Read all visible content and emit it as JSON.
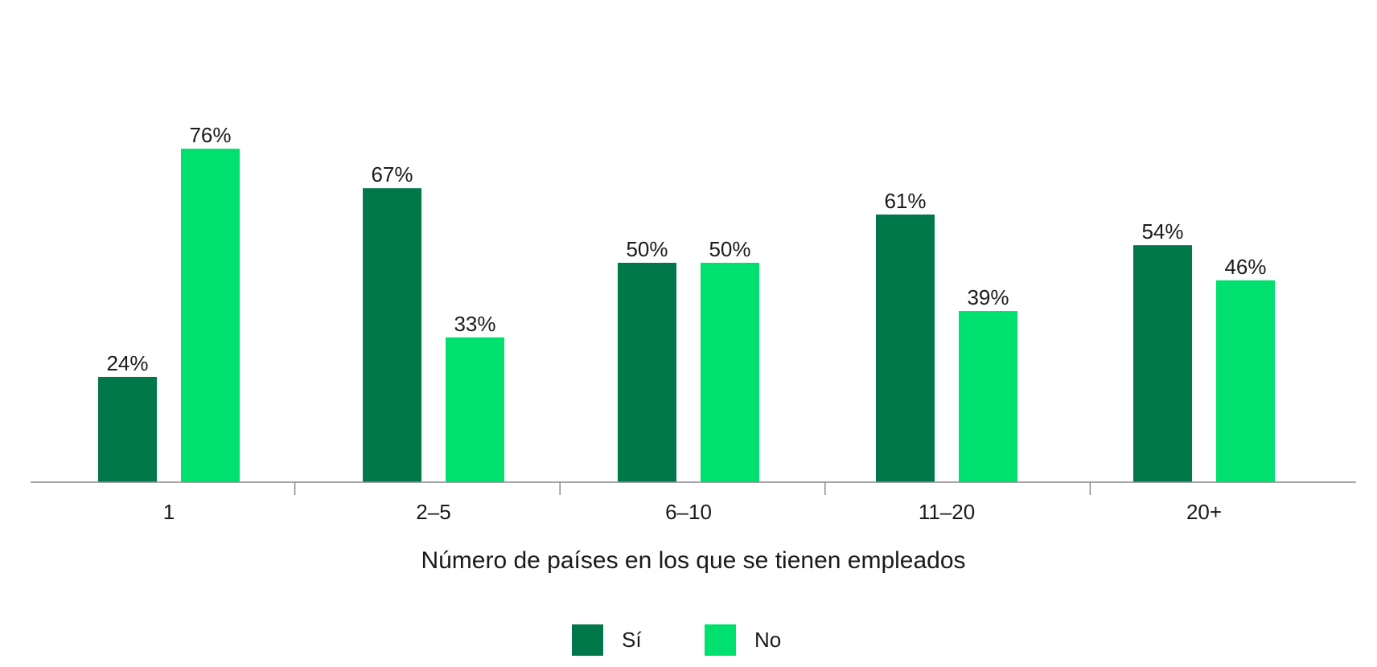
{
  "chart_data": {
    "type": "bar",
    "categories": [
      "1",
      "2–5",
      "6–10",
      "11–20",
      "20+"
    ],
    "series": [
      {
        "name": "Sí",
        "values": [
          24,
          67,
          50,
          61,
          54
        ],
        "labels": [
          "24%",
          "67%",
          "50%",
          "61%",
          "54%"
        ],
        "color": "#00784a"
      },
      {
        "name": "No",
        "values": [
          76,
          33,
          50,
          39,
          46
        ],
        "labels": [
          "76%",
          "33%",
          "50%",
          "39%",
          "46%"
        ],
        "color": "#00e06e"
      }
    ],
    "xlabel": "Número de países en los que se tienen empleados",
    "ylabel": "",
    "ylim": [
      0,
      100
    ],
    "grid": false,
    "legend_position": "bottom-center"
  }
}
